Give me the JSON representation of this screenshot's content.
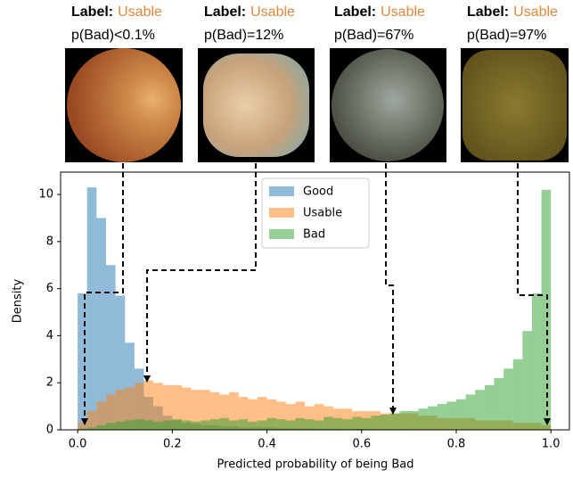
{
  "chart_data": {
    "type": "histogram",
    "xlabel": "Predicted probability of being Bad",
    "ylabel": "Density",
    "xlim": [
      -0.036,
      1.041
    ],
    "ylim": [
      0,
      10.95
    ],
    "xticks": [
      {
        "value": 0,
        "label": "0.0"
      },
      0.2,
      0.4,
      0.6,
      0.8,
      {
        "value": 1,
        "label": "1.0"
      }
    ],
    "yticks": [
      0,
      2,
      4,
      6,
      8,
      10
    ],
    "legend": "upper center",
    "opacity": 0.5,
    "bins": [
      0,
      0.02,
      0.04,
      0.06,
      0.08,
      0.1,
      0.12,
      0.14,
      0.16,
      0.18,
      0.2,
      0.22,
      0.24,
      0.26,
      0.28,
      0.3,
      0.32,
      0.34,
      0.36,
      0.38,
      0.4,
      0.42,
      0.44,
      0.46,
      0.48,
      0.5,
      0.52,
      0.54,
      0.56,
      0.58,
      0.6,
      0.62,
      0.64,
      0.66,
      0.68,
      0.7,
      0.72,
      0.74,
      0.76,
      0.78,
      0.8,
      0.82,
      0.84,
      0.86,
      0.88,
      0.9,
      0.92,
      0.94,
      0.96,
      0.98,
      1
    ],
    "series": [
      {
        "name": "Good",
        "color": "#1f77b4",
        "values": [
          5.8,
          10.3,
          9.0,
          7.0,
          5.7,
          3.7,
          2.6,
          1.4,
          1.0,
          0.6,
          0.4,
          0.3,
          0.25,
          0.2,
          0.2,
          0.15,
          0.15,
          0.1,
          0.1,
          0.1,
          0.1,
          0.08,
          0.08,
          0.06,
          0.06,
          0.05,
          0.05,
          0.05,
          0.04,
          0.04,
          0.04,
          0.03,
          0.03,
          0.03,
          0.03,
          0.02,
          0.02,
          0.02,
          0.02,
          0.02,
          0.02,
          0.02,
          0.01,
          0.01,
          0.01,
          0.01,
          0.01,
          0.01,
          0.01,
          0.01
        ]
      },
      {
        "name": "Usable",
        "color": "#ff7f0e",
        "values": [
          0.3,
          0.8,
          1.2,
          1.5,
          1.7,
          1.8,
          2.0,
          2.1,
          2.0,
          1.9,
          1.9,
          1.8,
          1.7,
          1.7,
          1.6,
          1.5,
          1.6,
          1.4,
          1.3,
          1.4,
          1.3,
          1.2,
          1.1,
          1.2,
          1.0,
          1.1,
          1.0,
          0.9,
          0.9,
          0.8,
          0.8,
          0.8,
          0.7,
          0.7,
          0.7,
          0.7,
          0.6,
          0.6,
          0.5,
          0.5,
          0.5,
          0.5,
          0.4,
          0.4,
          0.4,
          0.4,
          0.3,
          0.3,
          0.3,
          0.2
        ]
      },
      {
        "name": "Bad",
        "color": "#2ca02c",
        "values": [
          0.05,
          0.1,
          0.2,
          0.3,
          0.35,
          0.4,
          0.45,
          0.4,
          0.35,
          0.4,
          0.45,
          0.4,
          0.35,
          0.4,
          0.45,
          0.5,
          0.4,
          0.45,
          0.35,
          0.4,
          0.5,
          0.45,
          0.4,
          0.5,
          0.45,
          0.4,
          0.55,
          0.5,
          0.45,
          0.55,
          0.5,
          0.6,
          0.65,
          0.7,
          0.8,
          0.8,
          0.9,
          1.0,
          1.1,
          1.2,
          1.3,
          1.5,
          1.7,
          1.9,
          2.2,
          2.6,
          3.0,
          4.2,
          5.8,
          10.2
        ]
      }
    ]
  },
  "panels": [
    {
      "label_prefix": "Label:",
      "label": "Usable",
      "probability": "p(Bad)<0.1%"
    },
    {
      "label_prefix": "Label:",
      "label": "Usable",
      "probability": "p(Bad)=12%"
    },
    {
      "label_prefix": "Label:",
      "label": "Usable",
      "probability": "p(Bad)=67%"
    },
    {
      "label_prefix": "Label:",
      "label": "Usable",
      "probability": "p(Bad)=97%"
    }
  ]
}
